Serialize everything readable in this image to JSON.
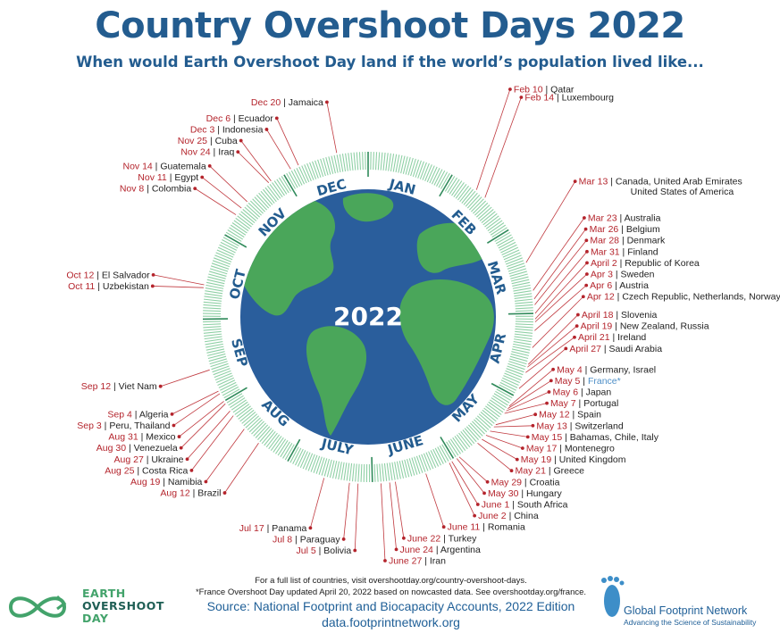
{
  "title": "Country Overshoot Days 2022",
  "subtitle": "When would Earth Overshoot Day land if the world’s population lived like...",
  "center_label": "2022",
  "months": [
    "JAN",
    "FEB",
    "MAR",
    "APR",
    "MAY",
    "JUNE",
    "JULY",
    "AUG",
    "SEP",
    "OCT",
    "NOV",
    "DEC"
  ],
  "footer": {
    "full_list": "For a full list of countries, visit overshootday.org/country-overshoot-days.",
    "france_note": "*France Overshoot Day updated April 20, 2022 based on nowcasted data. See overshootday.org/france.",
    "source": "Source: National Footprint and Biocapacity Accounts, 2022 Edition",
    "url": "data.footprintnetwork.org"
  },
  "logos": {
    "left": [
      "EARTH",
      "OVERSHOOT",
      "DAY"
    ],
    "right_name": "Global Footprint Network",
    "right_tagline": "Advancing the Science of Sustainability"
  },
  "colors": {
    "title": "#235c8f",
    "date": "#b4242c",
    "ocean": "#2a5e9c",
    "land": "#4aa65a",
    "ring": "#8fd0a5",
    "france": "#4e8fc7"
  },
  "chart_data": {
    "type": "radial-timeline",
    "year": 2022,
    "entries": [
      {
        "date": "Feb 10",
        "doy": 41,
        "countries": "Qatar"
      },
      {
        "date": "Feb 14",
        "doy": 45,
        "countries": "Luxembourg"
      },
      {
        "date": "Mar 13",
        "doy": 72,
        "countries": "Canada, United Arab Emirates",
        "countries2": "United States of America"
      },
      {
        "date": "Mar 23",
        "doy": 82,
        "countries": "Australia"
      },
      {
        "date": "Mar 26",
        "doy": 85,
        "countries": "Belgium"
      },
      {
        "date": "Mar 28",
        "doy": 87,
        "countries": "Denmark"
      },
      {
        "date": "Mar 31",
        "doy": 90,
        "countries": "Finland"
      },
      {
        "date": "April 2",
        "doy": 92,
        "countries": "Republic of Korea"
      },
      {
        "date": "Apr 3",
        "doy": 93,
        "countries": "Sweden"
      },
      {
        "date": "Apr 6",
        "doy": 96,
        "countries": "Austria"
      },
      {
        "date": "Apr 12",
        "doy": 102,
        "countries": "Czech Republic, Netherlands, Norway"
      },
      {
        "date": "April 18",
        "doy": 108,
        "countries": "Slovenia"
      },
      {
        "date": "April 19",
        "doy": 109,
        "countries": "New Zealand, Russia"
      },
      {
        "date": "April 21",
        "doy": 111,
        "countries": "Ireland"
      },
      {
        "date": "April 27",
        "doy": 117,
        "countries": "Saudi Arabia"
      },
      {
        "date": "May 4",
        "doy": 124,
        "countries": "Germany, Israel"
      },
      {
        "date": "May 5",
        "doy": 125,
        "countries": "France*"
      },
      {
        "date": "May 6",
        "doy": 126,
        "countries": "Japan"
      },
      {
        "date": "May 7",
        "doy": 127,
        "countries": "Portugal"
      },
      {
        "date": "May 12",
        "doy": 132,
        "countries": "Spain"
      },
      {
        "date": "May 13",
        "doy": 133,
        "countries": "Switzerland"
      },
      {
        "date": "May 15",
        "doy": 135,
        "countries": "Bahamas, Chile, Italy"
      },
      {
        "date": "May 17",
        "doy": 137,
        "countries": "Montenegro"
      },
      {
        "date": "May 19",
        "doy": 139,
        "countries": "United Kingdom"
      },
      {
        "date": "May 21",
        "doy": 141,
        "countries": "Greece"
      },
      {
        "date": "May 29",
        "doy": 149,
        "countries": "Croatia"
      },
      {
        "date": "May 30",
        "doy": 150,
        "countries": "Hungary"
      },
      {
        "date": "June 1",
        "doy": 152,
        "countries": "South Africa"
      },
      {
        "date": "June 2",
        "doy": 153,
        "countries": "China"
      },
      {
        "date": "June 11",
        "doy": 162,
        "countries": "Romania"
      },
      {
        "date": "June 22",
        "doy": 173,
        "countries": "Turkey"
      },
      {
        "date": "June 24",
        "doy": 175,
        "countries": "Argentina"
      },
      {
        "date": "June 27",
        "doy": 178,
        "countries": "Iran"
      },
      {
        "date": "Jul 5",
        "doy": 186,
        "countries": "Bolivia"
      },
      {
        "date": "Jul 8",
        "doy": 189,
        "countries": "Paraguay"
      },
      {
        "date": "Jul 17",
        "doy": 198,
        "countries": "Panama"
      },
      {
        "date": "Aug 12",
        "doy": 224,
        "countries": "Brazil"
      },
      {
        "date": "Aug 19",
        "doy": 231,
        "countries": "Namibia"
      },
      {
        "date": "Aug 25",
        "doy": 237,
        "countries": "Costa Rica"
      },
      {
        "date": "Aug 27",
        "doy": 239,
        "countries": "Ukraine"
      },
      {
        "date": "Aug 30",
        "doy": 242,
        "countries": "Venezuela"
      },
      {
        "date": "Aug 31",
        "doy": 243,
        "countries": "Mexico"
      },
      {
        "date": "Sep 3",
        "doy": 246,
        "countries": "Peru, Thailand"
      },
      {
        "date": "Sep 4",
        "doy": 247,
        "countries": "Algeria"
      },
      {
        "date": "Sep 12",
        "doy": 255,
        "countries": "Viet Nam"
      },
      {
        "date": "Oct 11",
        "doy": 284,
        "countries": "Uzbekistan"
      },
      {
        "date": "Oct 12",
        "doy": 285,
        "countries": "El Salvador"
      },
      {
        "date": "Nov 8",
        "doy": 312,
        "countries": "Colombia"
      },
      {
        "date": "Nov 11",
        "doy": 315,
        "countries": "Egypt"
      },
      {
        "date": "Nov 14",
        "doy": 318,
        "countries": "Guatemala"
      },
      {
        "date": "Nov 24",
        "doy": 328,
        "countries": "Iraq"
      },
      {
        "date": "Nov 25",
        "doy": 329,
        "countries": "Cuba"
      },
      {
        "date": "Dec 3",
        "doy": 337,
        "countries": "Indonesia"
      },
      {
        "date": "Dec 6",
        "doy": 340,
        "countries": "Ecuador"
      },
      {
        "date": "Dec 20",
        "doy": 354,
        "countries": "Jamaica"
      }
    ]
  }
}
